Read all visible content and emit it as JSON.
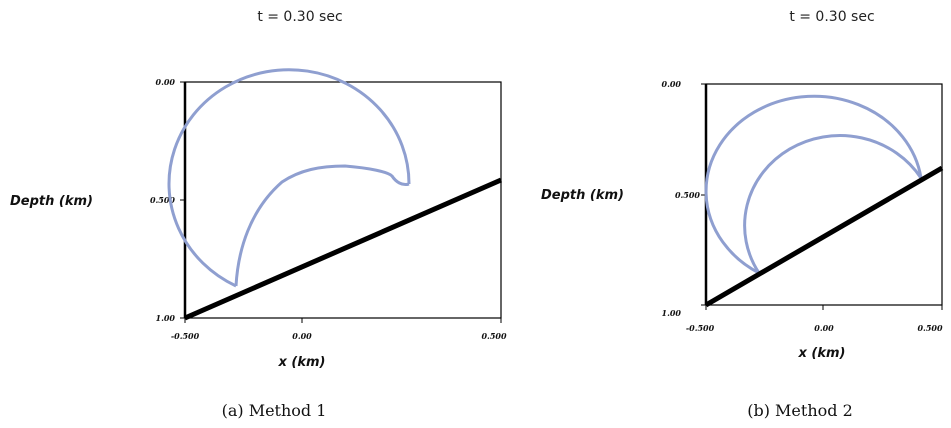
{
  "figures": [
    {
      "title": "t = 0.30 sec",
      "ylabel": "Depth (km)",
      "xlabel": "x (km)",
      "yticks": [
        "0.00",
        "0.500",
        "1.00"
      ],
      "xticks": [
        "-0.500",
        "0.00",
        "0.500"
      ],
      "caption": "(a)  Method 1"
    },
    {
      "title": "t = 0.30 sec",
      "ylabel": "Depth (km)",
      "xlabel": "x (km)",
      "yticks": [
        "0.00",
        "0.500",
        "1.00"
      ],
      "xticks": [
        "-0.500",
        "0.00",
        "0.500"
      ],
      "caption": "(b)  Method 2"
    }
  ],
  "colors": {
    "wavefront": "#8f9fd0",
    "reflector": "#000000",
    "frame": "#000000"
  }
}
